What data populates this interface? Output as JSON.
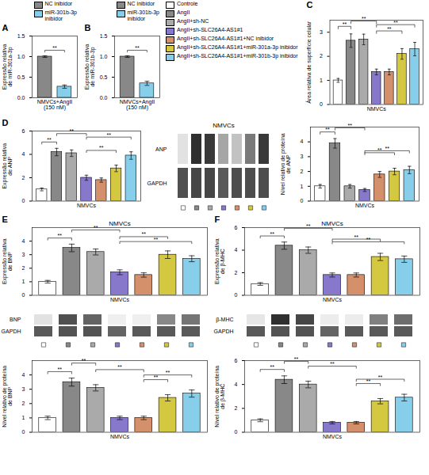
{
  "chart_data": [
    {
      "type": "bar",
      "annotations": [
        {
          "text": "A"
        },
        {
          "text": "**",
          "between": [
            "NC inibidor",
            "miR-301b-3p\ninibidor"
          ]
        }
      ],
      "xlabel": "NMVCs+AngII\n(150 nM)",
      "ylabel": "Expressão relativa\nde miR-301a-3p",
      "categories": [
        "NC inibidor",
        "miR-301b-3p\ninibidor"
      ],
      "colors": [
        "#888888",
        "#87CEEB"
      ],
      "values": [
        1.0,
        0.27
      ],
      "errors": [
        0.02,
        0.04
      ],
      "ylim": [
        0,
        1.5
      ],
      "yticks": [
        {
          "value": 0,
          "label": "0.0"
        },
        {
          "value": 0.5,
          "label": "0.5"
        },
        {
          "value": 1,
          "label": "1.0"
        },
        {
          "value": 1.5,
          "label": "1.5"
        }
      ],
      "legend": "upper right",
      "tick_labels": "y"
    },
    {
      "type": "bar",
      "annotations": [
        {
          "text": "B"
        },
        {
          "text": "**",
          "between": [
            "NC inibidor",
            "miR-301b-3p\ninibidor"
          ]
        }
      ],
      "xlabel": "NMVCs+AngII\n(150 nM)",
      "ylabel": "Expressão relativa\nde miR-301b-3p",
      "categories": [
        "NC inibidor",
        "miR-301b-3p\ninibidor"
      ],
      "colors": [
        "#888888",
        "#87CEEB"
      ],
      "values": [
        1.0,
        0.35
      ],
      "errors": [
        0.02,
        0.05
      ],
      "ylim": [
        0,
        1.5
      ],
      "yticks": [
        {
          "value": 0,
          "label": "0.0"
        },
        {
          "value": 0.5,
          "label": "0.5"
        },
        {
          "value": 1,
          "label": "1.0"
        },
        {
          "value": 1.5,
          "label": "1.5"
        }
      ],
      "legend": "upper right",
      "tick_labels": "y"
    },
    {
      "type": "bar",
      "annotations": [
        {
          "text": "C"
        },
        {
          "text": "**",
          "between": [
            "Controle",
            "AngII"
          ]
        },
        {
          "text": "**",
          "between": [
            "AngII",
            "AngII+sh-SLC26A4-AS1#1"
          ]
        },
        {
          "text": "**",
          "between": [
            "AngII+sh-SLC26A4-AS1#1",
            "AngII+sh-SLC26A4-AS1#1+miR-301a-3p inibidor"
          ]
        },
        {
          "text": "**",
          "between": [
            "AngII+sh-SLC26A4-AS1#1",
            "AngII+sh-SLC26A4-AS1#1+miR-301b-3p inibidor"
          ]
        }
      ],
      "xlabel": "NMVCs",
      "ylabel": "Área relativa de superfície celular",
      "categories": [
        "Controle",
        "AngII",
        "AngII+sh-NC",
        "AngII+sh-SLC26A4-AS1#1",
        "AngII+sh-SLC26A4-AS1#1+NC inibidor",
        "AngII+sh-SLC26A4-AS1#1+miR-301a-3p inibidor",
        "AngII+sh-SLC26A4-AS1#1+miR-301b-3p inibidor"
      ],
      "colors": [
        "#FFFFFF",
        "#888888",
        "#AAAAAA",
        "#8878CC",
        "#D4906A",
        "#D4C840",
        "#87CEEB"
      ],
      "values": [
        1.0,
        2.65,
        2.7,
        1.35,
        1.35,
        2.1,
        2.3
      ],
      "errors": [
        0.08,
        0.28,
        0.22,
        0.12,
        0.12,
        0.22,
        0.28
      ],
      "ylim": [
        0,
        3.5
      ],
      "yticks": [
        0,
        1,
        2,
        3
      ],
      "legend": "upper left",
      "tick_labels": "y"
    },
    {
      "type": "bar",
      "annotations": [
        {
          "text": "D"
        },
        {
          "text": "**",
          "between": [
            "Controle",
            "AngII"
          ]
        },
        {
          "text": "**",
          "between": [
            "AngII",
            "AngII+sh-SLC26A4-AS1#1"
          ]
        },
        {
          "text": "**",
          "between": [
            "AngII+sh-SLC26A4-AS1#1",
            "AngII+sh-SLC26A4-AS1#1+miR-301a-3p inibidor"
          ]
        },
        {
          "text": "**",
          "between": [
            "AngII+sh-SLC26A4-AS1#1",
            "AngII+sh-SLC26A4-AS1#1+miR-301b-3p inibidor"
          ]
        }
      ],
      "xlabel": "NMVCs",
      "ylabel": "Expressão relativa\nde ANP",
      "categories": [
        "Controle",
        "AngII",
        "AngII+sh-NC",
        "AngII+sh-SLC26A4-AS1#1",
        "AngII+sh-SLC26A4-AS1#1+NC inibidor",
        "AngII+sh-SLC26A4-AS1#1+miR-301a-3p inibidor",
        "AngII+sh-SLC26A4-AS1#1+miR-301b-3p inibidor"
      ],
      "colors": [
        "#FFFFFF",
        "#888888",
        "#AAAAAA",
        "#8878CC",
        "#D4906A",
        "#D4C840",
        "#87CEEB"
      ],
      "values": [
        1.0,
        4.2,
        4.1,
        2.0,
        1.8,
        2.8,
        3.9
      ],
      "errors": [
        0.12,
        0.32,
        0.28,
        0.22,
        0.18,
        0.28,
        0.32
      ],
      "ylim": [
        0,
        6
      ],
      "yticks": [
        0,
        2,
        4,
        6
      ],
      "tick_labels": "y"
    },
    {
      "type": "heatmap",
      "title": "NMVCs",
      "rows": [
        "ANP",
        "GAPDH"
      ],
      "categories": [
        "Controle",
        "AngII",
        "AngII+sh-NC",
        "AngII+sh-SLC26A4-AS1#1",
        "AngII+sh-SLC26A4-AS1#1+NC inibidor",
        "AngII+sh-SLC26A4-AS1#1+miR-301a-3p inibidor",
        "AngII+sh-SLC26A4-AS1#1+miR-301b-3p inibidor"
      ],
      "colors": [
        "#FFFFFF",
        "#888888",
        "#AAAAAA",
        "#8878CC",
        "#D4906A",
        "#D4C840",
        "#87CEEB"
      ],
      "cells": [
        [
          0.2,
          0.85,
          0.82,
          0.45,
          0.35,
          0.6,
          0.82
        ],
        [
          0.75,
          0.78,
          0.78,
          0.72,
          0.76,
          0.76,
          0.76
        ]
      ],
      "tick_labels": "y"
    },
    {
      "type": "bar",
      "annotations": [
        {
          "text": "**",
          "between": [
            "Controle",
            "AngII"
          ]
        },
        {
          "text": "**",
          "between": [
            "AngII",
            "AngII+sh-SLC26A4-AS1#1"
          ]
        },
        {
          "text": "**",
          "between": [
            "AngII+sh-SLC26A4-AS1#1",
            "AngII+sh-SLC26A4-AS1#1+miR-301a-3p inibidor"
          ]
        },
        {
          "text": "**",
          "between": [
            "AngII+sh-SLC26A4-AS1#1",
            "AngII+sh-SLC26A4-AS1#1+miR-301b-3p inibidor"
          ]
        }
      ],
      "xlabel": "NMVCs",
      "ylabel": "Nível relativo de proteína\nde ANP",
      "categories": [
        "Controle",
        "AngII",
        "AngII+sh-NC",
        "AngII+sh-SLC26A4-AS1#1",
        "AngII+sh-SLC26A4-AS1#1+NC inibidor",
        "AngII+sh-SLC26A4-AS1#1+miR-301a-3p inibidor",
        "AngII+sh-SLC26A4-AS1#1+miR-301b-3p inibidor"
      ],
      "colors": [
        "#FFFFFF",
        "#888888",
        "#AAAAAA",
        "#8878CC",
        "#D4906A",
        "#D4C840",
        "#87CEEB"
      ],
      "values": [
        1.0,
        3.9,
        1.0,
        0.75,
        1.8,
        2.0,
        2.1
      ],
      "errors": [
        0.12,
        0.32,
        0.12,
        0.1,
        0.2,
        0.22,
        0.25
      ],
      "ylim": [
        0,
        5
      ],
      "yticks": [
        0,
        1,
        2,
        3,
        4
      ],
      "tick_labels": "y"
    },
    {
      "type": "bar",
      "title": "NMVCs",
      "annotations": [
        {
          "text": "E"
        },
        {
          "text": "**",
          "between": [
            "Controle",
            "AngII"
          ]
        },
        {
          "text": "**",
          "between": [
            "AngII",
            "AngII+sh-SLC26A4-AS1#1"
          ]
        },
        {
          "text": "**",
          "between": [
            "AngII+sh-SLC26A4-AS1#1",
            "AngII+sh-SLC26A4-AS1#1+miR-301a-3p inibidor"
          ]
        },
        {
          "text": "**",
          "between": [
            "AngII+sh-SLC26A4-AS1#1",
            "AngII+sh-SLC26A4-AS1#1+miR-301b-3p inibidor"
          ]
        }
      ],
      "xlabel": "NMVCs",
      "ylabel": "Expressão relativa\nde BNP",
      "categories": [
        "Controle",
        "AngII",
        "AngII+sh-NC",
        "AngII+sh-SLC26A4-AS1#1",
        "AngII+sh-SLC26A4-AS1#1+NC inibidor",
        "AngII+sh-SLC26A4-AS1#1+miR-301a-3p inibidor",
        "AngII+sh-SLC26A4-AS1#1+miR-301b-3p inibidor"
      ],
      "colors": [
        "#FFFFFF",
        "#888888",
        "#AAAAAA",
        "#8878CC",
        "#D4906A",
        "#D4C840",
        "#87CEEB"
      ],
      "values": [
        1.0,
        3.5,
        3.2,
        1.7,
        1.5,
        3.0,
        2.7
      ],
      "errors": [
        0.1,
        0.28,
        0.22,
        0.18,
        0.16,
        0.28,
        0.22
      ],
      "ylim": [
        0,
        5
      ],
      "yticks": [
        0,
        1,
        2,
        3,
        4
      ],
      "tick_labels": "y"
    },
    {
      "type": "bar",
      "title": "NMVCs",
      "annotations": [
        {
          "text": "F"
        },
        {
          "text": "**",
          "between": [
            "Controle",
            "AngII"
          ]
        },
        {
          "text": "**",
          "between": [
            "AngII",
            "AngII+sh-SLC26A4-AS1#1"
          ]
        },
        {
          "text": "**",
          "between": [
            "AngII+sh-SLC26A4-AS1#1",
            "AngII+sh-SLC26A4-AS1#1+miR-301a-3p inibidor"
          ]
        },
        {
          "text": "**",
          "between": [
            "AngII+sh-SLC26A4-AS1#1",
            "AngII+sh-SLC26A4-AS1#1+miR-301b-3p inibidor"
          ]
        }
      ],
      "xlabel": "NMVCs",
      "ylabel": "Expressão relativa\nde β-MHC",
      "categories": [
        "Controle",
        "AngII",
        "AngII+sh-NC",
        "AngII+sh-SLC26A4-AS1#1",
        "AngII+sh-SLC26A4-AS1#1+NC inibidor",
        "AngII+sh-SLC26A4-AS1#1+miR-301a-3p inibidor",
        "AngII+sh-SLC26A4-AS1#1+miR-301b-3p inibidor"
      ],
      "colors": [
        "#FFFFFF",
        "#888888",
        "#AAAAAA",
        "#8878CC",
        "#D4906A",
        "#D4C840",
        "#87CEEB"
      ],
      "values": [
        1.0,
        4.4,
        4.0,
        1.8,
        1.8,
        3.4,
        3.2
      ],
      "errors": [
        0.12,
        0.32,
        0.28,
        0.18,
        0.18,
        0.32,
        0.28
      ],
      "ylim": [
        0,
        6
      ],
      "yticks": [
        0,
        2,
        4,
        6
      ],
      "tick_labels": "y"
    },
    {
      "type": "heatmap",
      "rows": [
        "BNP",
        "GAPDH"
      ],
      "categories": [
        "Controle",
        "AngII",
        "AngII+sh-NC",
        "AngII+sh-SLC26A4-AS1#1",
        "AngII+sh-SLC26A4-AS1#1+NC inibidor",
        "AngII+sh-SLC26A4-AS1#1+miR-301a-3p inibidor",
        "AngII+sh-SLC26A4-AS1#1+miR-301b-3p inibidor"
      ],
      "colors": [
        "#FFFFFF",
        "#888888",
        "#AAAAAA",
        "#8878CC",
        "#D4906A",
        "#D4C840",
        "#87CEEB"
      ],
      "cells": [
        [
          0.2,
          0.75,
          0.68,
          0.12,
          0.12,
          0.55,
          0.62
        ],
        [
          0.72,
          0.74,
          0.74,
          0.68,
          0.72,
          0.72,
          0.72
        ]
      ],
      "tick_labels": "y"
    },
    {
      "type": "heatmap",
      "rows": [
        "β-MHC",
        "GAPDH"
      ],
      "categories": [
        "Controle",
        "AngII",
        "AngII+sh-NC",
        "AngII+sh-SLC26A4-AS1#1",
        "AngII+sh-SLC26A4-AS1#1+NC inibidor",
        "AngII+sh-SLC26A4-AS1#1+miR-301a-3p inibidor",
        "AngII+sh-SLC26A4-AS1#1+miR-301b-3p inibidor"
      ],
      "colors": [
        "#FFFFFF",
        "#888888",
        "#AAAAAA",
        "#8878CC",
        "#D4906A",
        "#D4C840",
        "#87CEEB"
      ],
      "cells": [
        [
          0.18,
          0.85,
          0.78,
          0.14,
          0.14,
          0.58,
          0.65
        ],
        [
          0.72,
          0.74,
          0.74,
          0.68,
          0.72,
          0.72,
          0.72
        ]
      ],
      "tick_labels": "y"
    },
    {
      "type": "bar",
      "annotations": [
        {
          "text": "**",
          "between": [
            "Controle",
            "AngII"
          ]
        },
        {
          "text": "**",
          "between": [
            "AngII",
            "AngII+sh-NC"
          ]
        },
        {
          "text": "**",
          "between": [
            "AngII+sh-NC",
            "AngII+sh-SLC26A4-AS1#1+NC inibidor"
          ]
        },
        {
          "text": "**",
          "between": [
            "AngII+sh-SLC26A4-AS1#1+NC inibidor",
            "AngII+sh-SLC26A4-AS1#1+miR-301a-3p inibidor"
          ]
        },
        {
          "text": "**",
          "between": [
            "AngII+sh-SLC26A4-AS1#1+NC inibidor",
            "AngII+sh-SLC26A4-AS1#1+miR-301b-3p inibidor"
          ]
        }
      ],
      "xlabel": "NMVCs",
      "ylabel": "Nível relativo de proteína\nde BNP",
      "categories": [
        "Controle",
        "AngII",
        "AngII+sh-NC",
        "AngII+sh-SLC26A4-AS1#1",
        "AngII+sh-SLC26A4-AS1#1+NC inibidor",
        "AngII+sh-SLC26A4-AS1#1+miR-301a-3p inibidor",
        "AngII+sh-SLC26A4-AS1#1+miR-301b-3p inibidor"
      ],
      "colors": [
        "#FFFFFF",
        "#888888",
        "#AAAAAA",
        "#8878CC",
        "#D4906A",
        "#D4C840",
        "#87CEEB"
      ],
      "values": [
        1.0,
        3.5,
        3.1,
        1.0,
        1.0,
        2.4,
        2.7
      ],
      "errors": [
        0.12,
        0.28,
        0.22,
        0.12,
        0.12,
        0.22,
        0.25
      ],
      "ylim": [
        0,
        5
      ],
      "yticks": [
        0,
        1,
        2,
        3,
        4
      ],
      "tick_labels": "y"
    },
    {
      "type": "bar",
      "annotations": [
        {
          "text": "**",
          "between": [
            "Controle",
            "AngII"
          ]
        },
        {
          "text": "**",
          "between": [
            "AngII",
            "AngII+sh-NC"
          ]
        },
        {
          "text": "**",
          "between": [
            "AngII+sh-NC",
            "AngII+sh-SLC26A4-AS1#1+NC inibidor"
          ]
        },
        {
          "text": "**",
          "between": [
            "AngII+sh-SLC26A4-AS1#1+NC inibidor",
            "AngII+sh-SLC26A4-AS1#1+miR-301a-3p inibidor"
          ]
        },
        {
          "text": "**",
          "between": [
            "AngII+sh-SLC26A4-AS1#1+NC inibidor",
            "AngII+sh-SLC26A4-AS1#1+miR-301b-3p inibidor"
          ]
        }
      ],
      "xlabel": "NMVCs",
      "ylabel": "Nível relativo de proteína\nde β-MHC",
      "categories": [
        "Controle",
        "AngII",
        "AngII+sh-NC",
        "AngII+sh-SLC26A4-AS1#1",
        "AngII+sh-SLC26A4-AS1#1+NC inibidor",
        "AngII+sh-SLC26A4-AS1#1+miR-301a-3p inibidor",
        "AngII+sh-SLC26A4-AS1#1+miR-301b-3p inibidor"
      ],
      "colors": [
        "#FFFFFF",
        "#888888",
        "#AAAAAA",
        "#8878CC",
        "#D4906A",
        "#D4C840",
        "#87CEEB"
      ],
      "values": [
        1.0,
        4.4,
        4.0,
        0.8,
        0.8,
        2.6,
        2.9
      ],
      "errors": [
        0.12,
        0.32,
        0.28,
        0.1,
        0.1,
        0.22,
        0.28
      ],
      "ylim": [
        0,
        6
      ],
      "yticks": [
        0,
        2,
        4,
        6
      ],
      "tick_labels": "y"
    }
  ]
}
